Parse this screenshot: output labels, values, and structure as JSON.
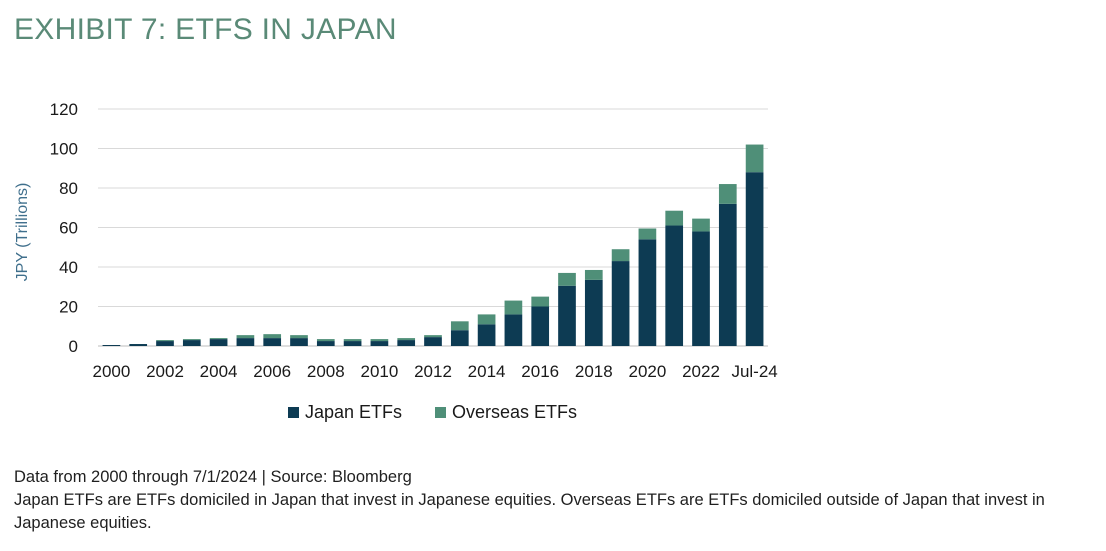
{
  "title": "EXHIBIT 7: ETFS IN JAPAN",
  "footnote": {
    "source": "Data from 2000 through 7/1/2024 | Source: Bloomberg",
    "note": "Japan ETFs are ETFs domiciled in Japan that invest in Japanese equities. Overseas ETFs are ETFs domiciled outside of Japan that invest in Japanese equities."
  },
  "colors": {
    "japan": "#0d3b53",
    "overseas": "#4f8f78",
    "grid": "#d9d9d9",
    "title": "#5a8a77",
    "ylabel": "#3f6f8c"
  },
  "chart_data": {
    "type": "bar",
    "stacked": true,
    "title": "EXHIBIT 7: ETFS IN JAPAN",
    "ylabel": "JPY (Trillions)",
    "xlabel": "",
    "ylim": [
      0,
      120
    ],
    "yticks": [
      0,
      20,
      40,
      60,
      80,
      100,
      120
    ],
    "grid": "horizontal",
    "legend_position": "bottom",
    "categories": [
      "2000",
      "2001",
      "2002",
      "2003",
      "2004",
      "2005",
      "2006",
      "2007",
      "2008",
      "2009",
      "2010",
      "2011",
      "2012",
      "2013",
      "2014",
      "2015",
      "2016",
      "2017",
      "2018",
      "2019",
      "2020",
      "2021",
      "2022",
      "2023",
      "Jul-24"
    ],
    "tick_labels": [
      "2000",
      "2002",
      "2004",
      "2006",
      "2008",
      "2010",
      "2012",
      "2014",
      "2016",
      "2018",
      "2020",
      "2022",
      "Jul-24"
    ],
    "tick_categories": [
      "2000",
      "2002",
      "2004",
      "2006",
      "2008",
      "2010",
      "2012",
      "2014",
      "2016",
      "2018",
      "2020",
      "2022",
      "Jul-24"
    ],
    "series": [
      {
        "name": "Japan ETFs",
        "values": [
          0.5,
          1,
          2.5,
          3,
          3.5,
          4,
          4,
          4,
          2.5,
          2.5,
          2.5,
          3,
          4.5,
          8,
          11,
          16,
          20,
          30.5,
          33.5,
          43,
          54,
          61,
          58,
          72,
          88
        ]
      },
      {
        "name": "Overseas ETFs",
        "values": [
          0,
          0,
          0.5,
          0.5,
          0.5,
          1.5,
          2,
          1.5,
          1,
          1,
          1,
          1,
          1,
          4.5,
          5,
          7,
          5,
          6.5,
          5,
          6,
          5.5,
          7.5,
          6.5,
          10,
          14
        ]
      }
    ]
  }
}
